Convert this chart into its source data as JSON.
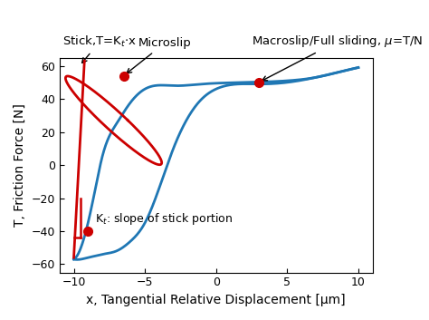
{
  "xlabel": "x, Tangential Relative Displacement [μm]",
  "ylabel": "T, Friction Force [N]",
  "xlim": [
    -11,
    11
  ],
  "ylim": [
    -65,
    65
  ],
  "xticks": [
    -10,
    -5,
    0,
    5,
    10
  ],
  "yticks": [
    -60,
    -40,
    -20,
    0,
    20,
    40,
    60
  ],
  "blue_color": "#1f77b4",
  "red_color": "#cc0000",
  "dot1_x": -9.0,
  "dot1_y": -40.0,
  "dot2_x": -6.5,
  "dot2_y": 54.0,
  "dot3_x": 3.0,
  "dot3_y": 50.0
}
